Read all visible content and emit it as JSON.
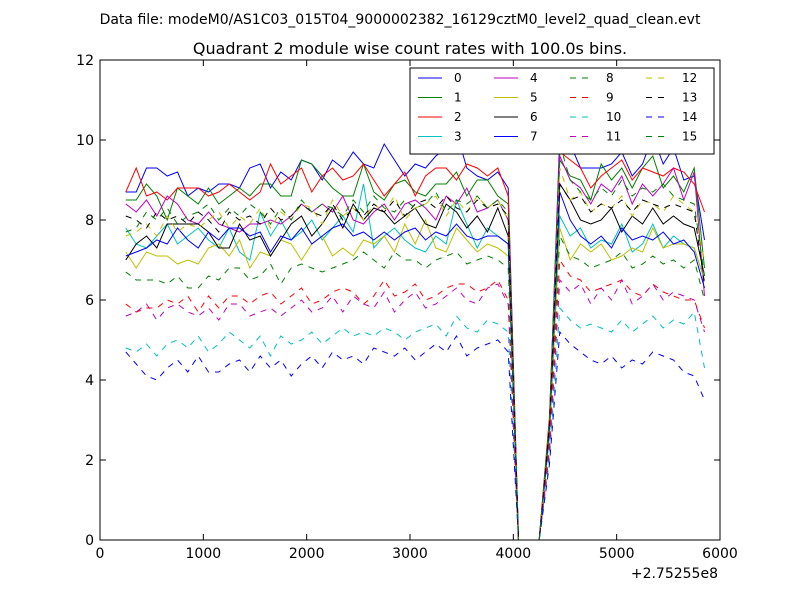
{
  "header": {
    "suptitle": "Data file: modeM0/AS1C03_015T04_9000002382_16129cztM0_level2_quad_clean.evt"
  },
  "chart_data": {
    "type": "line",
    "title": "Quadrant 2 module wise count rates with 100.0s bins.",
    "x_offset_label": "+2.75255e8",
    "xlim": [
      0,
      6000
    ],
    "ylim": [
      0,
      12
    ],
    "xticks": [
      0,
      1000,
      2000,
      3000,
      4000,
      5000,
      6000
    ],
    "yticks": [
      0,
      2,
      4,
      6,
      8,
      10,
      12
    ],
    "xtick_labels": [
      "0",
      "1000",
      "2000",
      "3000",
      "4000",
      "5000",
      "6000"
    ],
    "ytick_labels": [
      "0",
      "2",
      "4",
      "6",
      "8",
      "10",
      "12"
    ],
    "legend_position": "upper-right",
    "x": [
      250,
      350,
      450,
      550,
      650,
      750,
      850,
      950,
      1050,
      1150,
      1250,
      1350,
      1450,
      1550,
      1650,
      1750,
      1850,
      1950,
      2050,
      2150,
      2250,
      2350,
      2450,
      2550,
      2650,
      2750,
      2850,
      2950,
      3050,
      3150,
      3250,
      3350,
      3450,
      3550,
      3650,
      3750,
      3850,
      3950,
      4050,
      4150,
      4250,
      4350,
      4450,
      4550,
      4650,
      4750,
      4850,
      4950,
      5050,
      5150,
      5250,
      5350,
      5450,
      5550,
      5650,
      5750,
      5850
    ],
    "series": [
      {
        "name": "0",
        "color": "#0000ff",
        "dash": "solid",
        "values": [
          8.7,
          8.7,
          9.3,
          9.3,
          9.1,
          9.2,
          8.6,
          8.8,
          8.7,
          8.9,
          8.9,
          8.8,
          9.3,
          9.4,
          8.8,
          9.2,
          9.0,
          9.5,
          9.4,
          9.0,
          9.5,
          9.3,
          9.7,
          9.4,
          9.3,
          9.9,
          9.5,
          9.1,
          9.4,
          9.3,
          9.6,
          9.8,
          10.2,
          9.3,
          9.1,
          9.0,
          9.2,
          8.8,
          0,
          0,
          0,
          3.0,
          10.1,
          9.9,
          9.3,
          9.3,
          9.3,
          9.4,
          9.7,
          9.1,
          9.4,
          10.1,
          9.4,
          9.8,
          9.0,
          9.1,
          7.5
        ]
      },
      {
        "name": "1",
        "color": "#008000",
        "dash": "solid",
        "values": [
          8.5,
          8.5,
          8.9,
          8.6,
          8.0,
          8.8,
          8.6,
          8.4,
          8.8,
          8.4,
          8.6,
          8.8,
          8.6,
          8.9,
          8.9,
          8.6,
          8.6,
          9.5,
          9.4,
          9.1,
          8.8,
          8.6,
          8.6,
          9.4,
          8.7,
          8.5,
          8.9,
          9.0,
          8.7,
          8.6,
          8.9,
          8.9,
          9.2,
          8.6,
          9.0,
          9.0,
          8.6,
          8.4,
          0,
          0,
          0,
          2.9,
          9.5,
          9.1,
          9.0,
          8.5,
          9.4,
          9.0,
          9.3,
          8.8,
          9.3,
          9.6,
          8.8,
          9.1,
          8.7,
          9.3,
          6.8
        ]
      },
      {
        "name": "2",
        "color": "#ff0000",
        "dash": "solid",
        "values": [
          8.7,
          9.3,
          8.6,
          8.7,
          8.5,
          8.8,
          8.8,
          8.8,
          8.6,
          8.7,
          8.9,
          8.7,
          8.5,
          8.7,
          9.4,
          8.9,
          9.1,
          9.3,
          8.7,
          9.1,
          9.3,
          9.0,
          9.1,
          9.4,
          9.0,
          8.6,
          8.9,
          9.2,
          8.6,
          9.1,
          9.3,
          9.3,
          9.0,
          9.4,
          9.3,
          9.1,
          9.3,
          8.6,
          0,
          0,
          0,
          3.1,
          9.7,
          9.5,
          9.3,
          8.8,
          9.1,
          9.3,
          9.5,
          9.0,
          9.3,
          9.2,
          9.1,
          9.3,
          9.2,
          8.9,
          8.2
        ]
      },
      {
        "name": "3",
        "color": "#00bfbf",
        "dash": "solid",
        "values": [
          7.8,
          7.4,
          7.3,
          7.6,
          7.9,
          7.4,
          7.6,
          7.8,
          7.5,
          7.3,
          7.8,
          7.2,
          7.0,
          8.2,
          7.6,
          8.0,
          7.5,
          7.7,
          8.0,
          7.5,
          7.8,
          8.1,
          7.7,
          8.9,
          7.3,
          7.6,
          7.8,
          7.5,
          7.3,
          7.2,
          7.6,
          7.4,
          8.5,
          7.9,
          7.3,
          7.8,
          7.6,
          7.4,
          0,
          0,
          0,
          2.7,
          8.1,
          7.6,
          7.8,
          7.3,
          7.5,
          7.4,
          7.9,
          7.2,
          7.4,
          7.9,
          7.3,
          7.6,
          7.4,
          7.3,
          6.5
        ]
      },
      {
        "name": "4",
        "color": "#bf00bf",
        "dash": "solid",
        "values": [
          8.4,
          8.2,
          8.5,
          8.1,
          8.6,
          8.4,
          8.0,
          7.9,
          8.2,
          7.9,
          7.8,
          7.7,
          7.9,
          7.9,
          8.0,
          7.9,
          8.1,
          8.4,
          8.2,
          8.4,
          8.2,
          8.6,
          8.0,
          7.9,
          8.2,
          8.4,
          8.0,
          8.4,
          8.5,
          8.3,
          8.0,
          8.6,
          8.4,
          8.8,
          8.2,
          8.3,
          8.5,
          8.0,
          0,
          0,
          0,
          2.9,
          9.6,
          9.0,
          8.8,
          8.4,
          8.9,
          8.7,
          9.1,
          8.4,
          8.9,
          8.6,
          8.9,
          9.3,
          8.5,
          9.2,
          6.1
        ]
      },
      {
        "name": "5",
        "color": "#bfbf00",
        "dash": "solid",
        "values": [
          7.2,
          6.8,
          7.2,
          7.1,
          7.1,
          6.9,
          7.0,
          6.9,
          7.3,
          7.4,
          7.1,
          7.5,
          6.8,
          7.2,
          7.1,
          7.5,
          7.4,
          7.0,
          7.4,
          7.6,
          7.1,
          7.3,
          7.1,
          7.5,
          7.4,
          7.6,
          7.2,
          7.9,
          7.4,
          8.0,
          7.3,
          7.2,
          7.8,
          7.5,
          7.2,
          7.4,
          7.3,
          7.1,
          0,
          0,
          0,
          2.6,
          7.8,
          7.0,
          7.4,
          7.2,
          7.4,
          7.0,
          7.1,
          7.3,
          7.2,
          7.8,
          7.3,
          7.4,
          7.4,
          7.3,
          6.5
        ]
      },
      {
        "name": "6",
        "color": "#000000",
        "dash": "solid",
        "values": [
          7.0,
          7.4,
          7.6,
          7.3,
          7.9,
          7.9,
          7.9,
          7.9,
          7.7,
          7.3,
          7.3,
          7.9,
          7.5,
          7.6,
          7.1,
          7.5,
          7.9,
          8.1,
          7.6,
          7.9,
          8.3,
          7.8,
          8.4,
          8.0,
          8.3,
          8.2,
          7.9,
          8.1,
          8.3,
          7.9,
          7.8,
          8.4,
          8.2,
          7.8,
          8.1,
          7.7,
          8.3,
          7.6,
          0,
          0,
          0,
          2.8,
          8.9,
          8.5,
          8.0,
          7.9,
          8.0,
          8.3,
          7.7,
          8.1,
          7.9,
          8.3,
          7.9,
          8.1,
          7.9,
          7.8,
          6.6
        ]
      },
      {
        "name": "7",
        "color": "#0000ff",
        "dash": "solid",
        "values": [
          7.1,
          7.2,
          7.3,
          7.5,
          7.4,
          7.8,
          7.5,
          7.3,
          7.7,
          7.5,
          7.8,
          7.8,
          7.6,
          7.7,
          7.2,
          7.6,
          7.5,
          7.8,
          7.4,
          7.6,
          7.8,
          7.9,
          7.6,
          7.7,
          7.5,
          7.7,
          7.5,
          7.7,
          7.8,
          7.5,
          7.7,
          7.6,
          7.9,
          7.6,
          7.5,
          7.6,
          7.6,
          7.4,
          0,
          0,
          0,
          2.7,
          8.7,
          8.0,
          7.6,
          7.4,
          7.6,
          7.3,
          7.8,
          7.5,
          7.6,
          7.5,
          7.7,
          7.4,
          7.5,
          7.2,
          6.3
        ]
      },
      {
        "name": "8",
        "color": "#008000",
        "dash": "dashed",
        "values": [
          6.7,
          6.5,
          6.5,
          6.5,
          6.4,
          6.6,
          6.3,
          6.3,
          6.6,
          6.5,
          6.8,
          6.8,
          6.5,
          6.6,
          6.9,
          6.4,
          6.8,
          6.9,
          6.8,
          6.7,
          6.8,
          6.9,
          7.0,
          7.2,
          7.0,
          6.8,
          7.2,
          7.0,
          7.0,
          6.8,
          7.0,
          7.1,
          7.2,
          6.9,
          7.0,
          7.1,
          7.0,
          6.8,
          0,
          0,
          0,
          2.5,
          7.6,
          7.1,
          7.0,
          6.8,
          6.9,
          7.0,
          7.2,
          6.8,
          6.9,
          7.1,
          6.9,
          7.0,
          6.8,
          7.0,
          6.0
        ]
      },
      {
        "name": "9",
        "color": "#ff0000",
        "dash": "dashed",
        "values": [
          5.9,
          5.7,
          5.8,
          5.8,
          6.0,
          5.9,
          6.1,
          5.7,
          6.1,
          5.8,
          6.1,
          6.1,
          5.9,
          6.1,
          6.2,
          5.9,
          6.1,
          6.3,
          5.9,
          6.0,
          6.2,
          6.3,
          6.2,
          5.9,
          6.1,
          6.5,
          6.1,
          6.2,
          6.4,
          6.0,
          6.1,
          6.3,
          6.4,
          6.4,
          6.2,
          6.3,
          6.5,
          6.0,
          0,
          0,
          0,
          2.3,
          7.0,
          6.6,
          6.5,
          6.2,
          6.3,
          6.4,
          6.5,
          6.2,
          6.1,
          6.4,
          6.2,
          6.1,
          6.0,
          6.0,
          5.3
        ]
      },
      {
        "name": "10",
        "color": "#00bfbf",
        "dash": "dashed",
        "values": [
          4.8,
          4.7,
          4.9,
          4.6,
          4.9,
          5.0,
          4.8,
          5.1,
          4.7,
          4.9,
          5.2,
          5.0,
          4.8,
          5.1,
          4.6,
          5.1,
          4.9,
          5.0,
          5.2,
          4.9,
          5.1,
          5.3,
          5.1,
          5.2,
          5.1,
          5.3,
          5.2,
          5.0,
          5.2,
          5.3,
          5.4,
          5.1,
          5.6,
          5.3,
          5.2,
          5.5,
          5.4,
          5.2,
          0,
          0,
          0,
          2.0,
          5.8,
          5.5,
          5.3,
          5.4,
          5.3,
          5.2,
          5.5,
          5.2,
          5.4,
          5.6,
          5.3,
          5.5,
          5.4,
          5.7,
          4.3
        ]
      },
      {
        "name": "11",
        "color": "#bf00bf",
        "dash": "dashed",
        "values": [
          5.6,
          5.7,
          5.9,
          5.5,
          5.8,
          5.9,
          5.7,
          5.6,
          5.8,
          5.5,
          5.9,
          5.9,
          5.6,
          5.7,
          5.8,
          5.6,
          5.8,
          6.0,
          5.7,
          5.8,
          6.1,
          5.7,
          6.1,
          5.9,
          5.8,
          6.2,
          5.7,
          6.0,
          6.2,
          5.8,
          5.9,
          6.1,
          6.3,
          6.0,
          5.9,
          6.3,
          6.4,
          5.9,
          0,
          0,
          0,
          2.2,
          6.5,
          6.2,
          6.4,
          5.9,
          6.3,
          6.0,
          6.5,
          5.9,
          6.1,
          6.4,
          6.0,
          6.2,
          6.1,
          6.0,
          5.2
        ]
      },
      {
        "name": "12",
        "color": "#bfbf00",
        "dash": "dashed",
        "values": [
          7.6,
          7.7,
          7.9,
          7.6,
          8.1,
          7.7,
          7.9,
          7.8,
          8.0,
          8.2,
          7.8,
          8.1,
          7.9,
          8.3,
          7.8,
          8.2,
          8.0,
          8.4,
          8.3,
          7.9,
          8.5,
          8.1,
          8.3,
          8.0,
          8.4,
          8.2,
          8.6,
          8.0,
          8.3,
          8.4,
          8.6,
          8.1,
          8.5,
          8.2,
          8.6,
          8.3,
          8.5,
          8.0,
          0,
          0,
          0,
          2.9,
          9.3,
          8.5,
          8.7,
          8.2,
          8.4,
          8.3,
          8.6,
          8.1,
          8.5,
          8.4,
          8.2,
          8.6,
          8.4,
          8.2,
          7.0
        ]
      },
      {
        "name": "13",
        "color": "#000000",
        "dash": "dashed",
        "values": [
          8.1,
          8.0,
          7.8,
          8.2,
          8.0,
          8.1,
          7.9,
          8.2,
          8.0,
          7.7,
          8.2,
          8.0,
          8.1,
          7.9,
          8.3,
          8.0,
          8.1,
          8.4,
          8.2,
          8.1,
          8.4,
          8.0,
          8.3,
          8.1,
          8.4,
          8.2,
          8.5,
          8.1,
          8.4,
          8.5,
          8.3,
          8.6,
          8.3,
          8.2,
          8.5,
          8.3,
          8.4,
          8.1,
          0,
          0,
          0,
          2.9,
          8.9,
          8.5,
          8.6,
          8.2,
          8.4,
          8.3,
          8.5,
          8.2,
          8.5,
          8.4,
          8.3,
          8.4,
          8.3,
          8.2,
          6.4
        ]
      },
      {
        "name": "14",
        "color": "#0000ff",
        "dash": "dashed",
        "values": [
          4.7,
          4.4,
          4.1,
          4.0,
          4.3,
          4.5,
          4.2,
          4.6,
          4.2,
          4.2,
          4.4,
          4.5,
          4.2,
          4.6,
          4.3,
          4.5,
          4.1,
          4.4,
          4.6,
          4.3,
          4.7,
          4.5,
          4.6,
          4.4,
          4.8,
          4.7,
          4.6,
          4.8,
          4.5,
          4.7,
          4.9,
          4.7,
          5.1,
          4.6,
          4.8,
          4.9,
          5.0,
          4.7,
          0,
          0,
          0,
          1.9,
          5.2,
          4.9,
          4.7,
          4.5,
          4.4,
          4.6,
          4.3,
          4.5,
          4.4,
          4.7,
          4.6,
          4.5,
          4.2,
          4.1,
          3.5
        ]
      },
      {
        "name": "15",
        "color": "#008000",
        "dash": "dashed",
        "values": [
          7.7,
          7.8,
          8.2,
          8.0,
          8.3,
          7.9,
          8.1,
          8.2,
          8.4,
          8.0,
          8.3,
          8.1,
          8.4,
          8.2,
          7.9,
          8.3,
          8.0,
          8.5,
          8.2,
          8.4,
          8.3,
          8.1,
          8.5,
          8.2,
          8.6,
          8.3,
          8.2,
          8.5,
          8.3,
          8.4,
          8.7,
          8.2,
          8.5,
          8.4,
          8.6,
          8.3,
          8.5,
          8.2,
          0,
          0,
          0,
          3.0,
          9.9,
          9.0,
          8.7,
          8.5,
          8.8,
          8.6,
          9.0,
          8.6,
          8.8,
          8.7,
          8.9,
          8.6,
          8.5,
          8.4,
          6.6
        ]
      }
    ]
  }
}
